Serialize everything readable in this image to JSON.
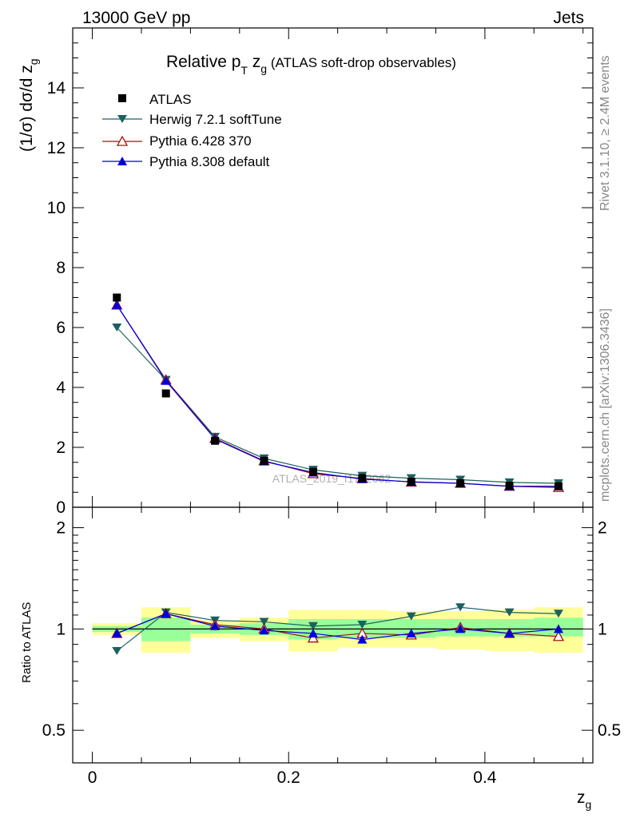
{
  "header": {
    "energy_label": "13000 GeV pp",
    "process_label": "Jets"
  },
  "side_labels": {
    "rivet": "Rivet 3.1.10, ≥ 2.4M events",
    "mcplots": "mcplots.cern.ch [arXiv:1306.3436]"
  },
  "watermark": "ATLAS_2019_I1772062",
  "colors": {
    "atlas": "#000000",
    "herwig": "#1c6161",
    "pythia6": "#a01010",
    "pythia8": "#0000dd",
    "band_inner": "#99ff99",
    "band_outer": "#ffff99"
  },
  "chart_data": [
    {
      "type": "scatter",
      "panel": "main",
      "title": "Relative p_T z_g (ATLAS soft-drop observables)",
      "title_parts": {
        "main": "Relative p",
        "sub_t": "T",
        "z": " z",
        "sub_g": "g",
        "rest": " (ATLAS soft-drop observables)"
      },
      "ylabel": "(1/σ) dσ/d z_g",
      "ylabel_parts": {
        "main": "(1/σ) dσ/d z",
        "sub": "g"
      },
      "xlim": [
        -0.02,
        0.51
      ],
      "ylim": [
        0,
        16
      ],
      "y_ticks": [
        "0",
        "2",
        "4",
        "6",
        "8",
        "10",
        "12",
        "14"
      ],
      "grid": false,
      "legend_position": "top-left",
      "x": [
        0.025,
        0.075,
        0.125,
        0.175,
        0.225,
        0.275,
        0.325,
        0.375,
        0.425,
        0.475
      ],
      "series": [
        {
          "name": "ATLAS",
          "marker": "square",
          "values": [
            7.0,
            3.8,
            2.22,
            1.55,
            1.18,
            0.97,
            0.85,
            0.8,
            0.72,
            0.7
          ]
        },
        {
          "name": "Herwig 7.2.1 softTune",
          "marker": "triangle-down",
          "values": [
            6.0,
            4.25,
            2.35,
            1.63,
            1.25,
            1.05,
            0.97,
            0.92,
            0.83,
            0.8
          ]
        },
        {
          "name": "Pythia 6.428 370",
          "marker": "triangle-open",
          "values": [
            6.75,
            4.25,
            2.3,
            1.55,
            1.12,
            0.96,
            0.84,
            0.8,
            0.7,
            0.66
          ]
        },
        {
          "name": "Pythia 8.308 default",
          "marker": "triangle-up",
          "values": [
            6.75,
            4.22,
            2.28,
            1.53,
            1.16,
            0.94,
            0.85,
            0.8,
            0.7,
            0.7
          ]
        }
      ]
    },
    {
      "type": "line",
      "panel": "ratio",
      "ylabel": "Ratio to ATLAS",
      "xlabel": "z_g",
      "xlabel_parts": {
        "main": "z",
        "sub": "g"
      },
      "xlim": [
        -0.02,
        0.51
      ],
      "ylim": [
        0.4,
        2.3
      ],
      "y_scale": "log",
      "x_ticks": [
        "0",
        "0.2",
        "0.4"
      ],
      "y_ticks": [
        "0.5",
        "1",
        "2"
      ],
      "x": [
        0.025,
        0.075,
        0.125,
        0.175,
        0.225,
        0.275,
        0.325,
        0.375,
        0.425,
        0.475
      ],
      "bands": {
        "inner_low": [
          0.98,
          0.92,
          0.97,
          0.96,
          0.93,
          0.94,
          0.94,
          0.95,
          0.95,
          0.95
        ],
        "inner_high": [
          1.02,
          1.08,
          1.03,
          1.04,
          1.07,
          1.07,
          1.07,
          1.07,
          1.07,
          1.08
        ],
        "outer_low": [
          0.96,
          0.85,
          0.94,
          0.92,
          0.86,
          0.88,
          0.88,
          0.87,
          0.86,
          0.85
        ],
        "outer_high": [
          1.04,
          1.16,
          1.06,
          1.08,
          1.14,
          1.14,
          1.13,
          1.13,
          1.14,
          1.16
        ]
      },
      "series": [
        {
          "name": "Herwig 7.2.1 softTune",
          "values": [
            0.86,
            1.12,
            1.06,
            1.05,
            1.02,
            1.03,
            1.09,
            1.16,
            1.12,
            1.11
          ]
        },
        {
          "name": "Pythia 6.428 370",
          "values": [
            0.97,
            1.11,
            1.03,
            1.0,
            0.94,
            0.97,
            0.96,
            1.01,
            0.97,
            0.95
          ]
        },
        {
          "name": "Pythia 8.308 default",
          "values": [
            0.97,
            1.11,
            1.02,
            0.99,
            0.97,
            0.93,
            0.97,
            1.0,
            0.97,
            1.0
          ]
        }
      ]
    }
  ]
}
